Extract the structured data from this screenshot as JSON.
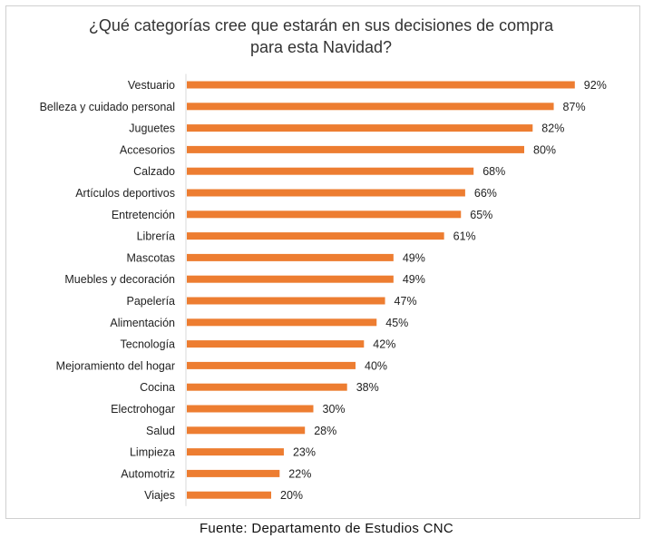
{
  "chart_data": {
    "type": "bar",
    "orientation": "horizontal",
    "title": "¿Qué categorías cree que estarán en sus decisiones de compra\npara esta Navidad?",
    "categories": [
      "Vestuario",
      "Belleza y cuidado personal",
      "Juguetes",
      "Accesorios",
      "Calzado",
      "Artículos deportivos",
      "Entretención",
      "Librería",
      "Mascotas",
      "Muebles y decoración",
      "Papelería",
      "Alimentación",
      "Tecnología",
      "Mejoramiento del hogar",
      "Cocina",
      "Electrohogar",
      "Salud",
      "Limpieza",
      "Automotriz",
      "Viajes"
    ],
    "values": [
      92,
      87,
      82,
      80,
      68,
      66,
      65,
      61,
      49,
      49,
      47,
      45,
      42,
      40,
      38,
      30,
      28,
      23,
      22,
      20
    ],
    "value_labels": [
      "92%",
      "87%",
      "82%",
      "80%",
      "68%",
      "66%",
      "65%",
      "61%",
      "49%",
      "49%",
      "47%",
      "45%",
      "42%",
      "40%",
      "38%",
      "30%",
      "28%",
      "23%",
      "22%",
      "20%"
    ],
    "xlim": [
      0,
      100
    ],
    "grid": false,
    "legend": "none",
    "bar_color": "#ED7D31"
  },
  "source": "Fuente: Departamento de Estudios CNC"
}
